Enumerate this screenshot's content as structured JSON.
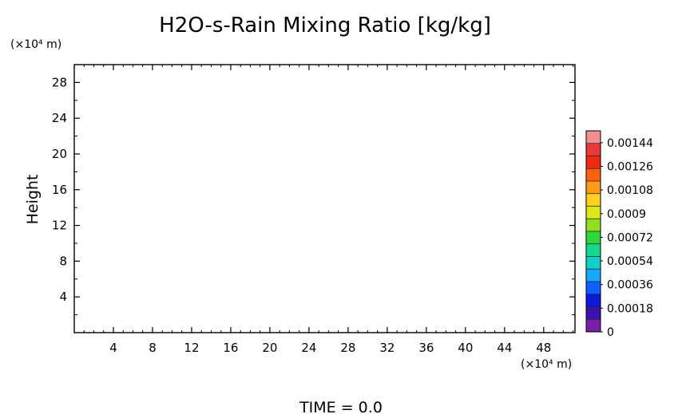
{
  "chart_data": {
    "type": "heatmap",
    "title": "H2O-s-Rain Mixing Ratio [kg/kg]",
    "ylabel": "Height",
    "y_unit_label": "(×10⁴ m)",
    "x_unit_label": "(×10⁴ m)",
    "footer": "TIME = 0.0",
    "xlim": [
      0,
      51.2
    ],
    "ylim": [
      0,
      30
    ],
    "x_ticks": [
      4,
      8,
      12,
      16,
      20,
      24,
      28,
      32,
      36,
      40,
      44,
      48
    ],
    "x_tick_labels": [
      "4",
      "8",
      "12",
      "16",
      "20",
      "24",
      "28",
      "32",
      "36",
      "40",
      "44",
      "48"
    ],
    "y_ticks": [
      4,
      8,
      12,
      16,
      20,
      24,
      28
    ],
    "y_tick_labels": [
      "4",
      "8",
      "12",
      "16",
      "20",
      "24",
      "28"
    ],
    "field_values": [],
    "colorbar": {
      "range": [
        0,
        0.00153
      ],
      "tick_values": [
        0,
        0.00018,
        0.00036,
        0.00054,
        0.00072,
        0.0009,
        0.00108,
        0.00126,
        0.00144
      ],
      "tick_labels": [
        "0",
        "0.00018",
        "0.00036",
        "0.00054",
        "0.00072",
        "0.0009",
        "0.00108",
        "0.00126",
        "0.00144"
      ],
      "colors": [
        "#7a1fa8",
        "#3a12b0",
        "#0a1ad8",
        "#1060ff",
        "#18a8ff",
        "#10d0c8",
        "#18d890",
        "#30d840",
        "#90e020",
        "#d8e818",
        "#ffd020",
        "#ff9a18",
        "#ff6010",
        "#f02a10",
        "#e83a3a",
        "#f09090"
      ]
    }
  }
}
